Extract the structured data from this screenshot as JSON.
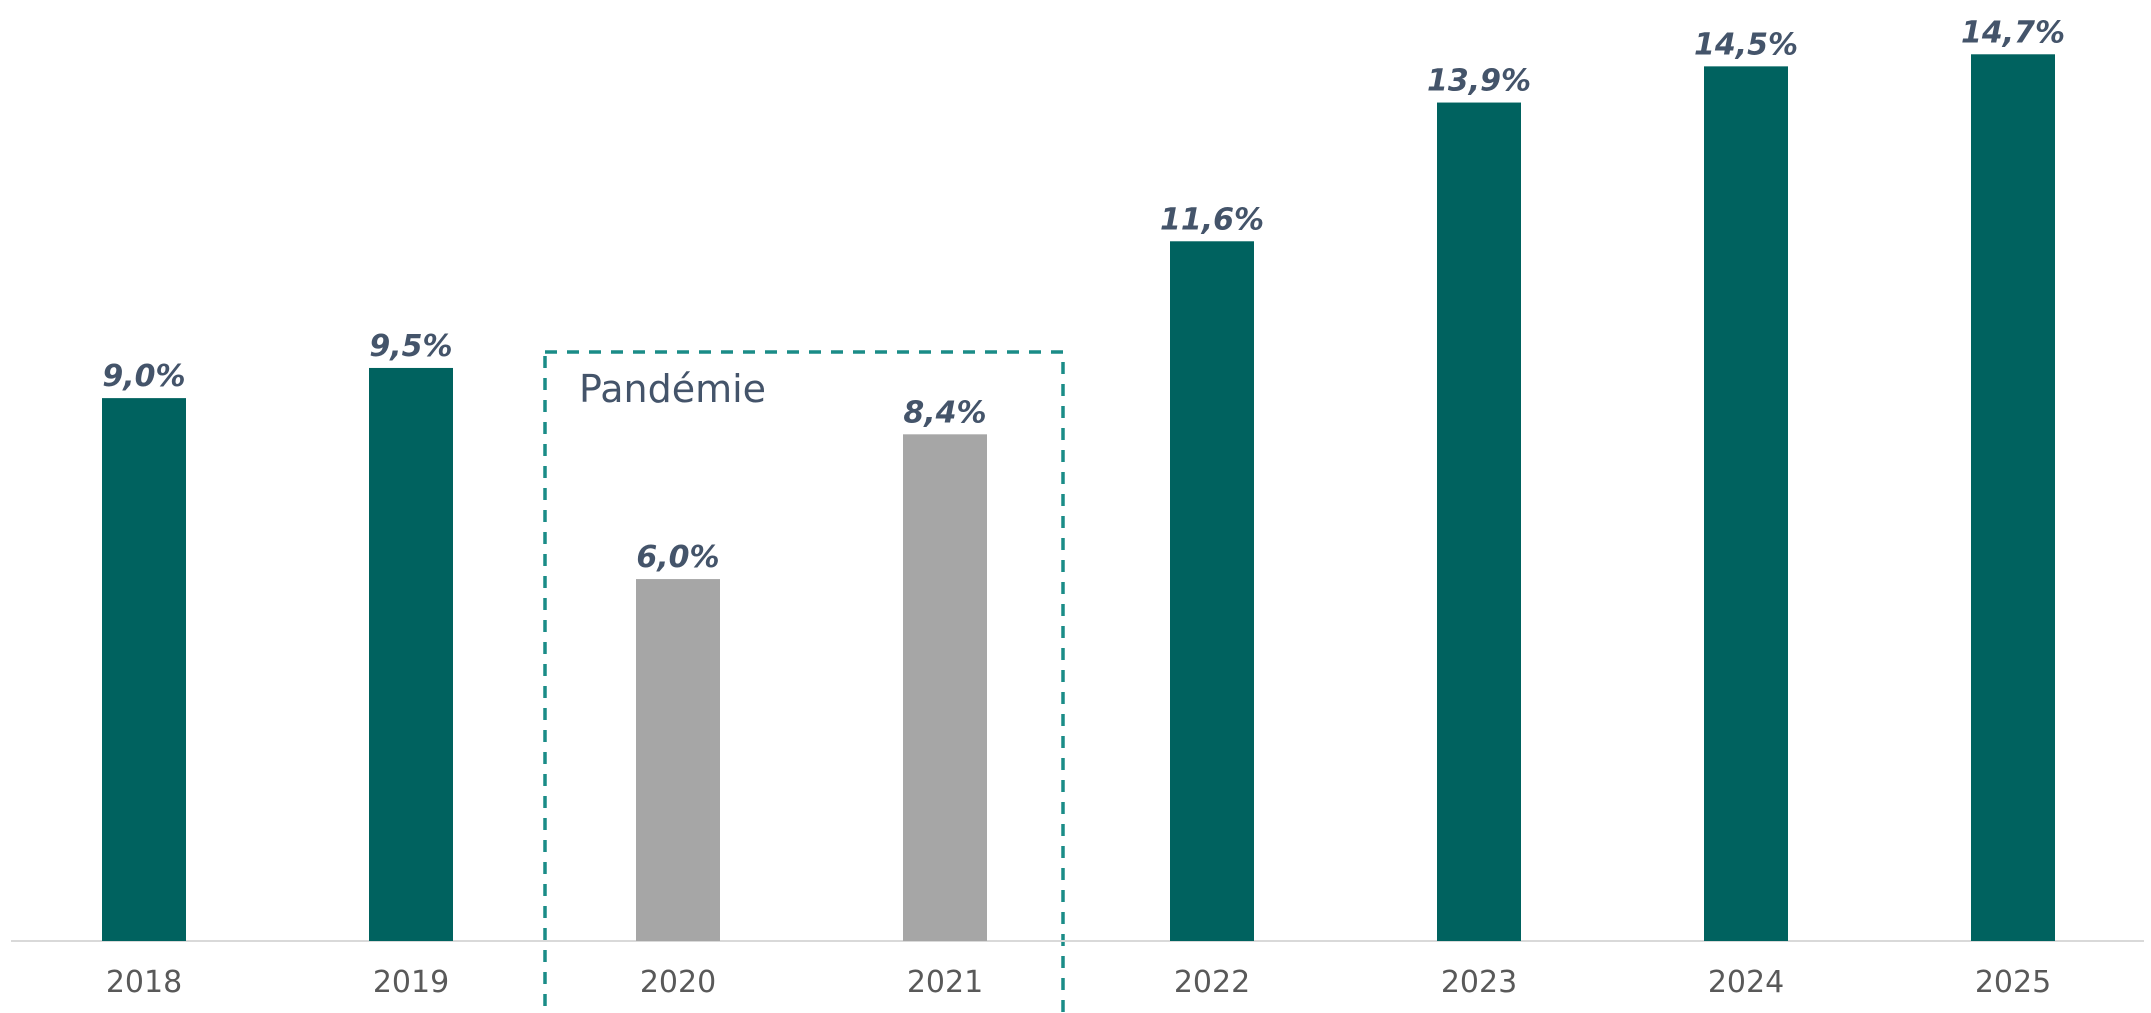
{
  "chart_data": {
    "type": "bar",
    "categories": [
      "2018",
      "2019",
      "2020",
      "2021",
      "2022",
      "2023",
      "2024",
      "2025"
    ],
    "values": [
      9.0,
      9.5,
      6.0,
      8.4,
      11.6,
      13.9,
      14.5,
      14.7
    ],
    "value_labels": [
      "9,0%",
      "9,5%",
      "6,0%",
      "8,4%",
      "11,6%",
      "13,9%",
      "14,5%",
      "14,7%"
    ],
    "colors": [
      "#00625f",
      "#00625f",
      "#a6a6a6",
      "#a6a6a6",
      "#00625f",
      "#00625f",
      "#00625f",
      "#00625f"
    ],
    "annotation": "Pandémie",
    "ylim": [
      0,
      15.6
    ],
    "grid": false
  }
}
